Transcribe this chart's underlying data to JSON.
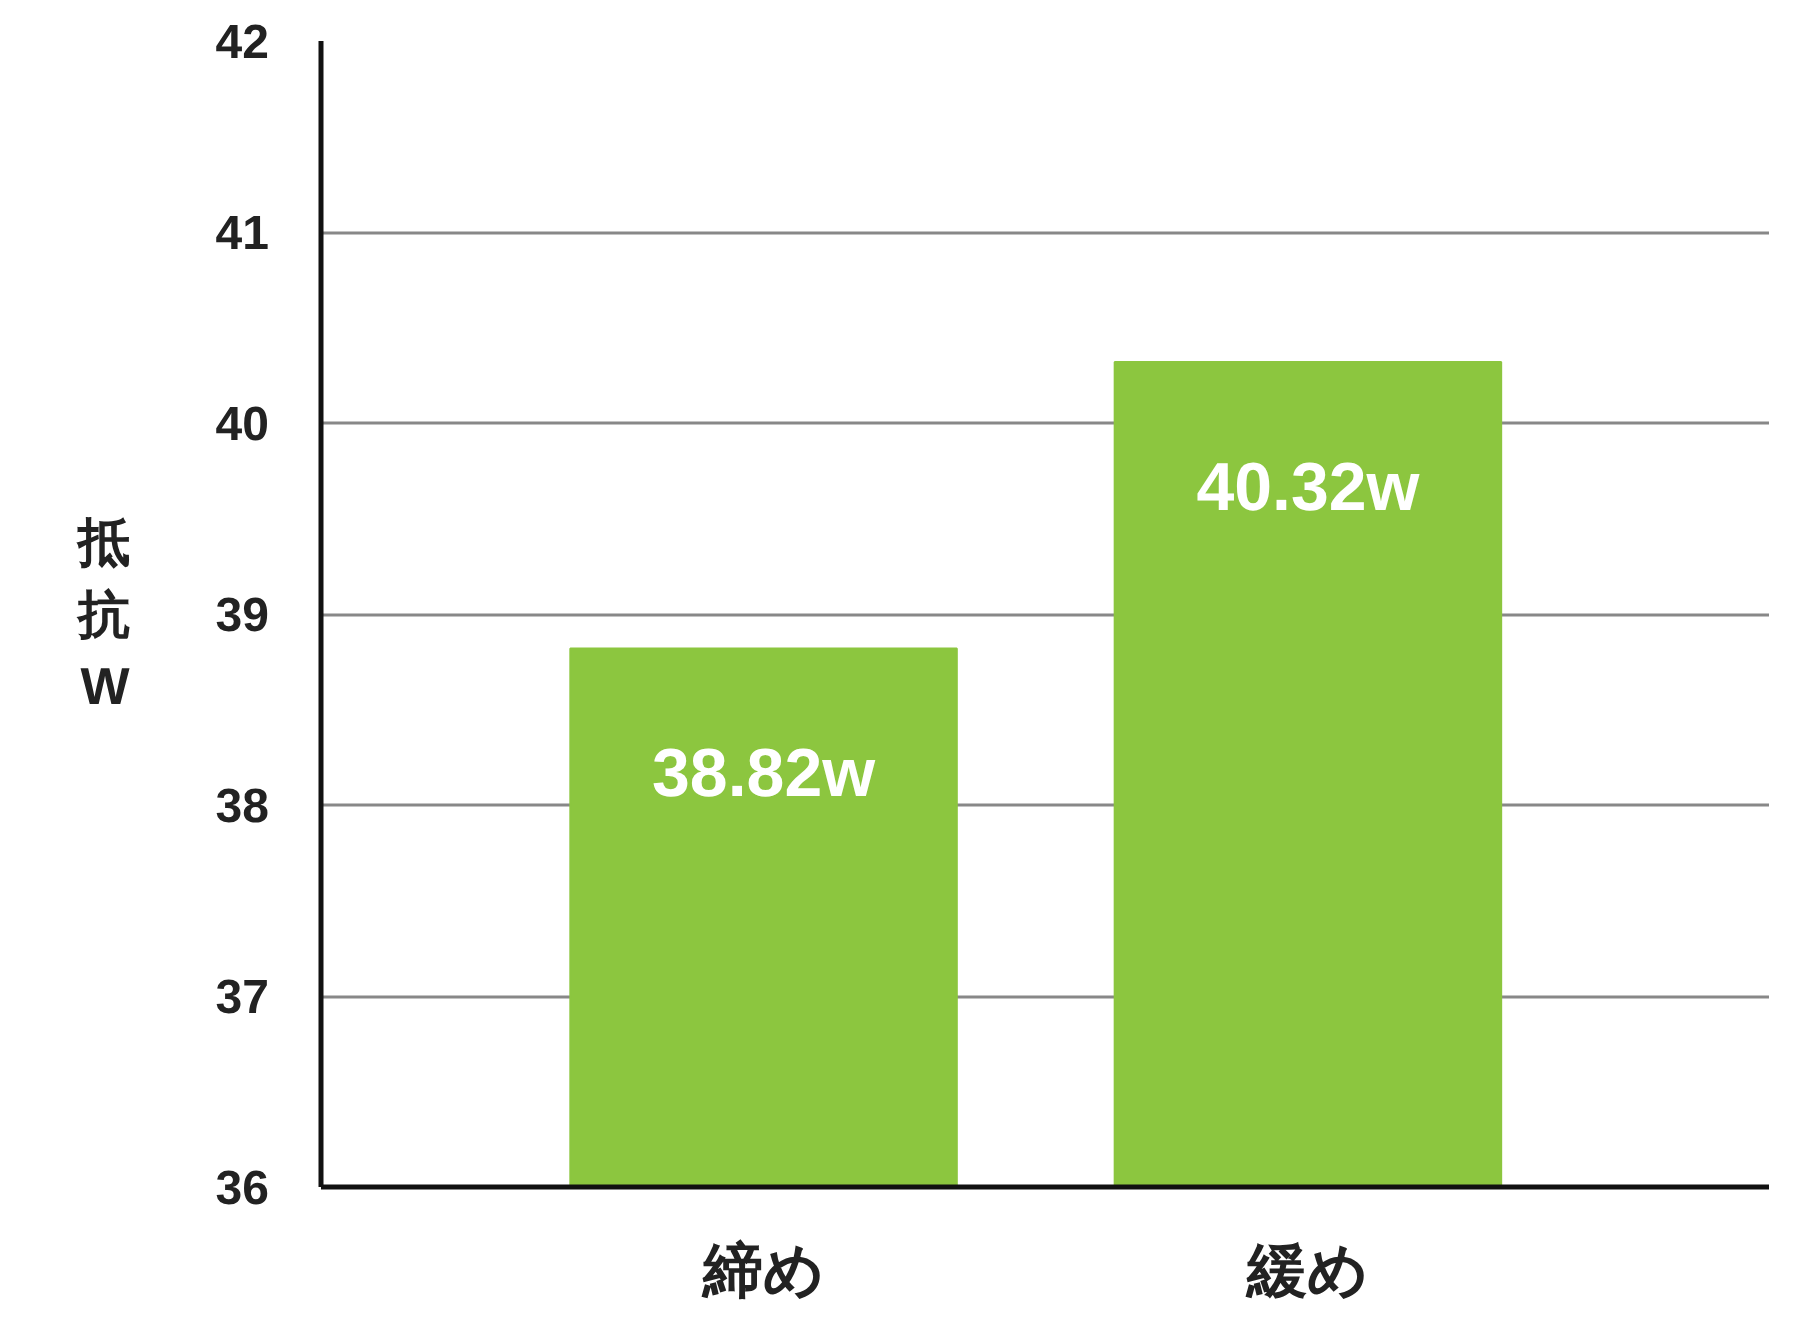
{
  "chart_data": {
    "type": "bar",
    "ylabel": "抵抗W",
    "categories": [
      "締め",
      "緩め"
    ],
    "values": [
      38.82,
      40.32
    ],
    "color": "#8cc63f",
    "value_labels": [
      "38.82w",
      "40.32w"
    ],
    "ylim": [
      36,
      42
    ],
    "yticks": [
      36,
      37,
      38,
      39,
      40,
      41,
      42
    ],
    "grid": "y"
  }
}
